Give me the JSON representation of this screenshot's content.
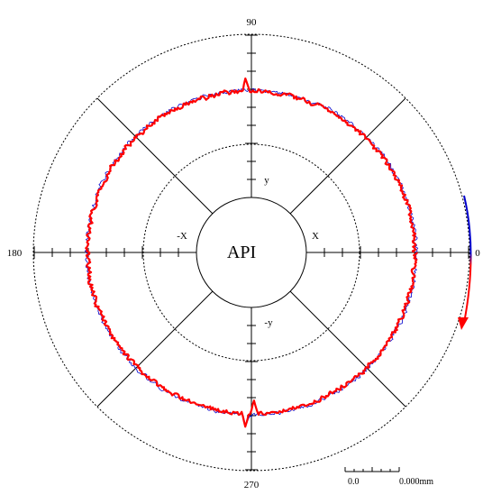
{
  "chart_data": {
    "type": "polar",
    "center_label": "API",
    "angle_labels": {
      "deg0": "0",
      "deg90": "90",
      "deg180": "180",
      "deg270": "270"
    },
    "axis_labels": {
      "pos_x": "X",
      "neg_x": "-X",
      "pos_y": "y",
      "neg_y": "-y"
    },
    "scale_bar": {
      "start_label": "0.0",
      "end_label": "0.000mm"
    },
    "grid": true,
    "series": [
      {
        "color": "#0000cc",
        "line_width": 0.8,
        "base_radius": 0.75,
        "noise": 0.012,
        "seed": 7
      },
      {
        "color": "#ff0000",
        "line_width": 2.2,
        "base_radius": 0.745,
        "noise": 0.014,
        "seed": 19
      }
    ],
    "spikes": [
      {
        "angle_deg": 92,
        "amplitude": 0.06
      },
      {
        "angle_deg": 268,
        "amplitude": 0.05
      },
      {
        "angle_deg": 271,
        "amplitude": -0.06
      }
    ],
    "direction_arrow": {
      "color_start": "#0000cc",
      "color_end": "#ff0000",
      "from_deg": 15,
      "to_deg": -20
    }
  }
}
